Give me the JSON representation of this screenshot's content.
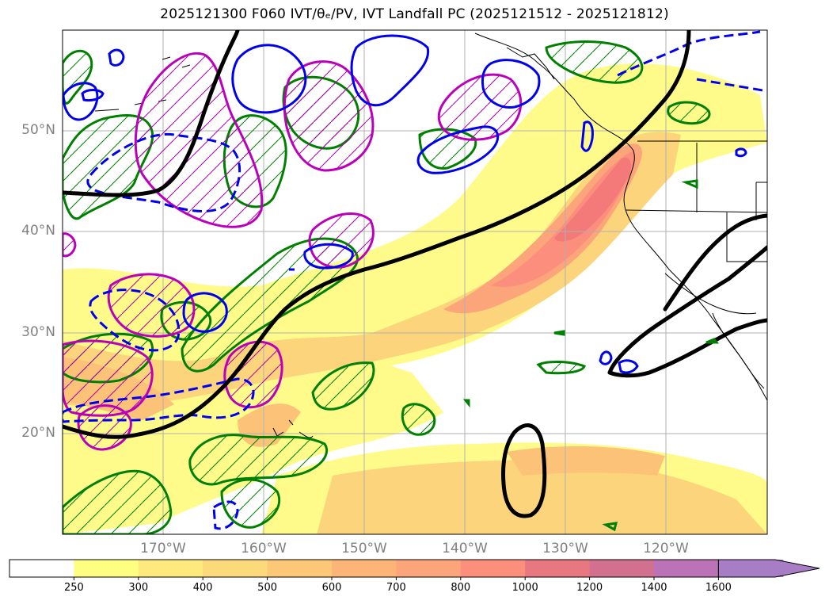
{
  "title": "2025121300 F060 IVT/θₑ/PV, IVT Landfall PC (2025121512 - 2025121812)",
  "latitude_labels": [
    "50°N",
    "40°N",
    "30°N",
    "20°N"
  ],
  "longitude_labels": [
    "170°W",
    "160°W",
    "150°W",
    "140°W",
    "130°W",
    "120°W"
  ],
  "colorbar": {
    "ticks": [
      "250",
      "300",
      "400",
      "500",
      "600",
      "700",
      "800",
      "1000",
      "1200",
      "1400",
      "1600"
    ],
    "colors": [
      "#ffffff",
      "#fefe80",
      "#fde97c",
      "#fcd97a",
      "#fcc878",
      "#fcb577",
      "#fca57a",
      "#fb8f7c",
      "#e87880",
      "#d1708f",
      "#bb72b7",
      "#a77ec6"
    ],
    "extend": "max"
  },
  "colors": {
    "ivt_fill_light": "#fffb8a",
    "ivt_fill_mid": "#fcd47b",
    "ivt_fill_core": "#fb8e7c",
    "theta_e_contour": "#000000",
    "pv_positive_contour": "#0000ee",
    "pv_hatch_green": "#008000",
    "pv_hatch_magenta": "#bb00bb"
  }
}
